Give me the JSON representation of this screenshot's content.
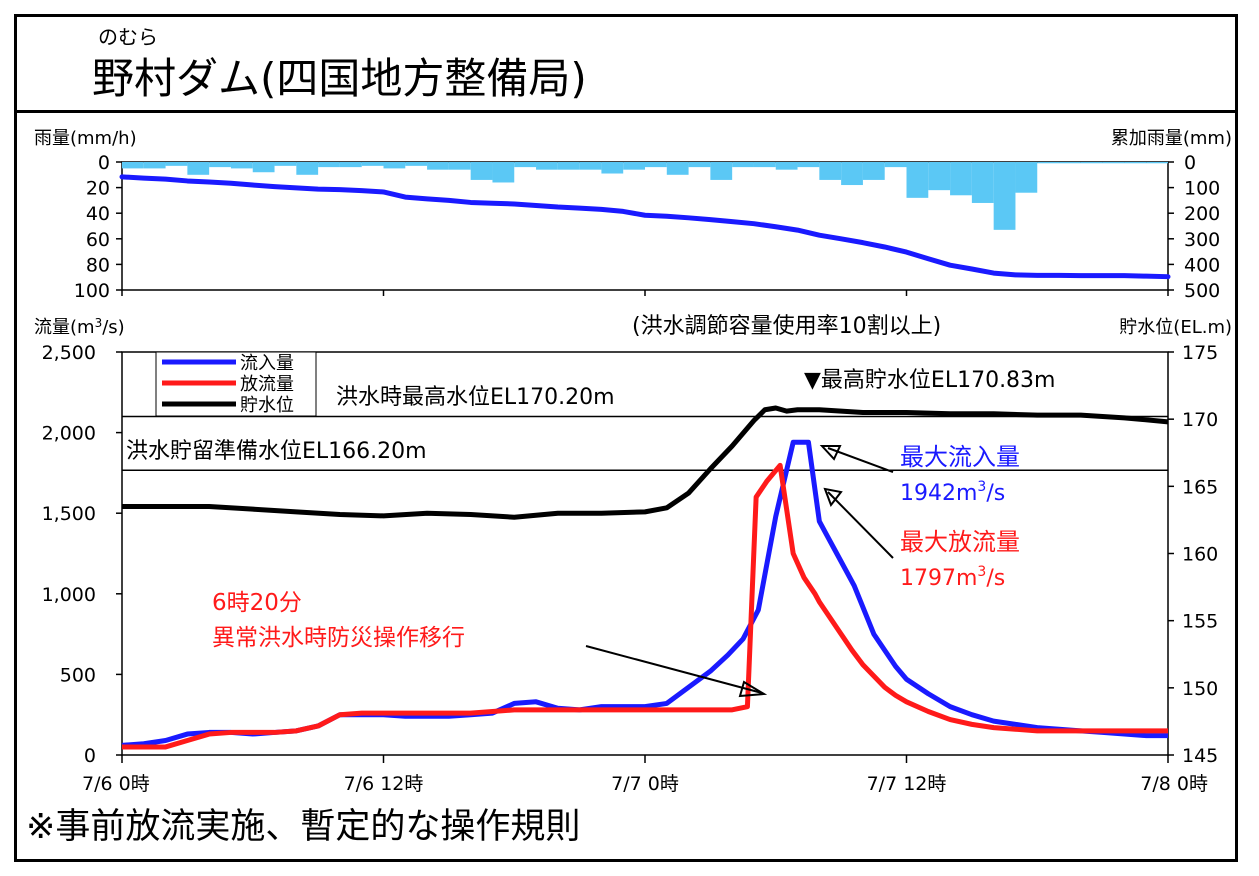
{
  "header": {
    "furigana": "のむら",
    "title": "野村ダム(四国地方整備局)"
  },
  "footnote": "※事前放流実施、暫定的な操作規則",
  "chart_data": [
    {
      "type": "bar",
      "panel": "rainfall",
      "ylabel_left": "雨量(mm/h)",
      "ylabel_right": "累加雨量(mm)",
      "ylim_left": [
        0,
        100
      ],
      "ylim_right": [
        0,
        500
      ],
      "yticks_left": [
        "0",
        "20",
        "40",
        "60",
        "80",
        "100"
      ],
      "yticks_right": [
        "0",
        "100",
        "200",
        "300",
        "400",
        "500"
      ],
      "inverted_y": true,
      "x_hours": [
        0,
        48
      ],
      "bar_color": "#5BC8F5",
      "hourly_rain_mm": [
        5,
        5,
        3,
        10,
        4,
        5,
        8,
        3,
        10,
        4,
        4,
        3,
        5,
        3,
        6,
        6,
        14,
        16,
        4,
        6,
        6,
        6,
        9,
        6,
        4,
        10,
        4,
        14,
        4,
        4,
        6,
        4,
        14,
        18,
        14,
        4,
        28,
        22,
        26,
        32,
        53,
        24,
        1,
        1,
        1,
        1,
        1,
        1
      ],
      "cumulative": {
        "name": "累加雨量",
        "color": "#1a1aff",
        "x_hours": [
          0,
          1,
          2,
          3,
          4,
          5,
          6,
          7,
          8,
          9,
          10,
          11,
          12,
          13,
          14,
          15,
          16,
          17,
          18,
          19,
          20,
          21,
          22,
          23,
          24,
          25,
          26,
          27,
          28,
          29,
          30,
          31,
          32,
          33,
          34,
          35,
          36,
          37,
          38,
          39,
          40,
          41,
          42,
          43,
          44,
          45,
          46,
          47,
          48
        ],
        "values_mm": [
          58,
          63,
          67,
          74,
          78,
          83,
          90,
          96,
          101,
          106,
          108,
          112,
          117,
          137,
          144,
          150,
          158,
          161,
          164,
          170,
          176,
          180,
          185,
          193,
          208,
          212,
          218,
          225,
          233,
          241,
          253,
          266,
          286,
          300,
          315,
          332,
          352,
          378,
          403,
          418,
          434,
          441,
          443,
          443,
          444,
          444,
          444,
          446,
          448
        ]
      }
    },
    {
      "type": "line",
      "panel": "flow",
      "ylabel_left": "流量(m3/s)",
      "ylabel_right": "貯水位(EL.m)",
      "ylim_left": [
        0,
        2500
      ],
      "ylim_right": [
        145,
        175
      ],
      "yticks_left": [
        "0",
        "500",
        "1,000",
        "1,500",
        "2,000",
        "2,500"
      ],
      "yticks_right": [
        "145",
        "150",
        "155",
        "160",
        "165",
        "170",
        "175"
      ],
      "xticks": [
        "7/6 0時",
        "7/6 12時",
        "7/7 0時",
        "7/7 12時",
        "7/8 0時"
      ],
      "xtick_hours": [
        0,
        12,
        24,
        36,
        48
      ],
      "note": "(洪水調節容量使用率10割以上)",
      "series": [
        {
          "name": "流入量",
          "color": "#1a1aff",
          "x_hours": [
            0,
            1,
            2,
            3,
            4,
            5,
            6,
            7,
            8,
            9,
            10,
            11,
            12,
            13,
            14,
            15,
            16,
            17,
            18,
            19,
            20,
            21,
            22,
            23,
            24,
            25,
            26,
            27,
            27.8,
            28.5,
            29.2,
            30,
            30.8,
            31.5,
            32,
            32.4,
            32.8,
            33.2,
            33.6,
            33.9,
            34.2,
            34.5,
            35,
            35.5,
            36,
            37,
            38,
            39,
            40,
            41,
            42,
            43,
            44,
            45,
            46,
            47,
            48
          ],
          "values": [
            60,
            70,
            90,
            130,
            140,
            140,
            130,
            140,
            150,
            180,
            250,
            250,
            250,
            240,
            240,
            240,
            250,
            260,
            320,
            330,
            290,
            280,
            300,
            300,
            300,
            320,
            420,
            520,
            620,
            720,
            900,
            1480,
            1940,
            1940,
            1450,
            1350,
            1250,
            1150,
            1050,
            950,
            850,
            750,
            650,
            550,
            470,
            380,
            300,
            250,
            210,
            190,
            170,
            160,
            150,
            140,
            130,
            120,
            120
          ]
        },
        {
          "name": "放流量",
          "color": "#ff1a1a",
          "x_hours": [
            0,
            1,
            2,
            3,
            4,
            5,
            6,
            7,
            8,
            9,
            10,
            11,
            12,
            13,
            14,
            15,
            16,
            17,
            18,
            19,
            20,
            21,
            22,
            23,
            24,
            25,
            26,
            27,
            28,
            28.7,
            29.1,
            29.6,
            30.2,
            30.8,
            31.3,
            31.8,
            32,
            32.5,
            33,
            33.5,
            34,
            34.5,
            35,
            35.5,
            36,
            37,
            38,
            39,
            40,
            41,
            42,
            43,
            44,
            45,
            46,
            47,
            48
          ],
          "values": [
            50,
            50,
            50,
            90,
            130,
            140,
            140,
            140,
            150,
            180,
            250,
            260,
            260,
            260,
            260,
            260,
            260,
            270,
            280,
            280,
            280,
            280,
            280,
            280,
            280,
            280,
            280,
            280,
            280,
            300,
            1600,
            1700,
            1797,
            1250,
            1100,
            1000,
            950,
            850,
            750,
            650,
            560,
            490,
            420,
            370,
            330,
            270,
            220,
            190,
            170,
            160,
            150,
            150,
            150,
            150,
            150,
            150,
            150
          ]
        },
        {
          "name": "貯水位",
          "color": "#000000",
          "axis": "right",
          "x_hours": [
            0,
            2,
            4,
            6,
            8,
            10,
            12,
            14,
            16,
            18,
            20,
            22,
            24,
            25,
            26,
            27,
            28,
            29,
            29.5,
            30,
            30.5,
            31,
            31.5,
            32,
            33,
            34,
            36,
            38,
            40,
            42,
            44,
            46,
            48
          ],
          "values": [
            163.5,
            163.5,
            163.5,
            163.3,
            163.1,
            162.9,
            162.8,
            163.0,
            162.9,
            162.7,
            163.0,
            163.0,
            163.1,
            163.4,
            164.5,
            166.3,
            168.0,
            169.9,
            170.7,
            170.83,
            170.6,
            170.7,
            170.7,
            170.7,
            170.6,
            170.5,
            170.5,
            170.4,
            170.4,
            170.3,
            170.3,
            170.1,
            169.8
          ]
        }
      ],
      "reference_lines": [
        {
          "label": "洪水時最高水位EL170.20m",
          "value": 170.2
        },
        {
          "label": "洪水貯留準備水位EL166.20m",
          "value": 166.2
        }
      ],
      "annotations": [
        {
          "text": "▼最高貯水位EL170.83m",
          "color": "#000000"
        },
        {
          "text": "最大流入量",
          "value_text": "1942m³/s",
          "color": "#1a1aff"
        },
        {
          "text": "最大放流量",
          "value_text": "1797m³/s",
          "color": "#ff1a1a"
        },
        {
          "text": "6時20分",
          "text2": "異常洪水時防災操作移行",
          "color": "#ff1a1a"
        }
      ]
    }
  ]
}
